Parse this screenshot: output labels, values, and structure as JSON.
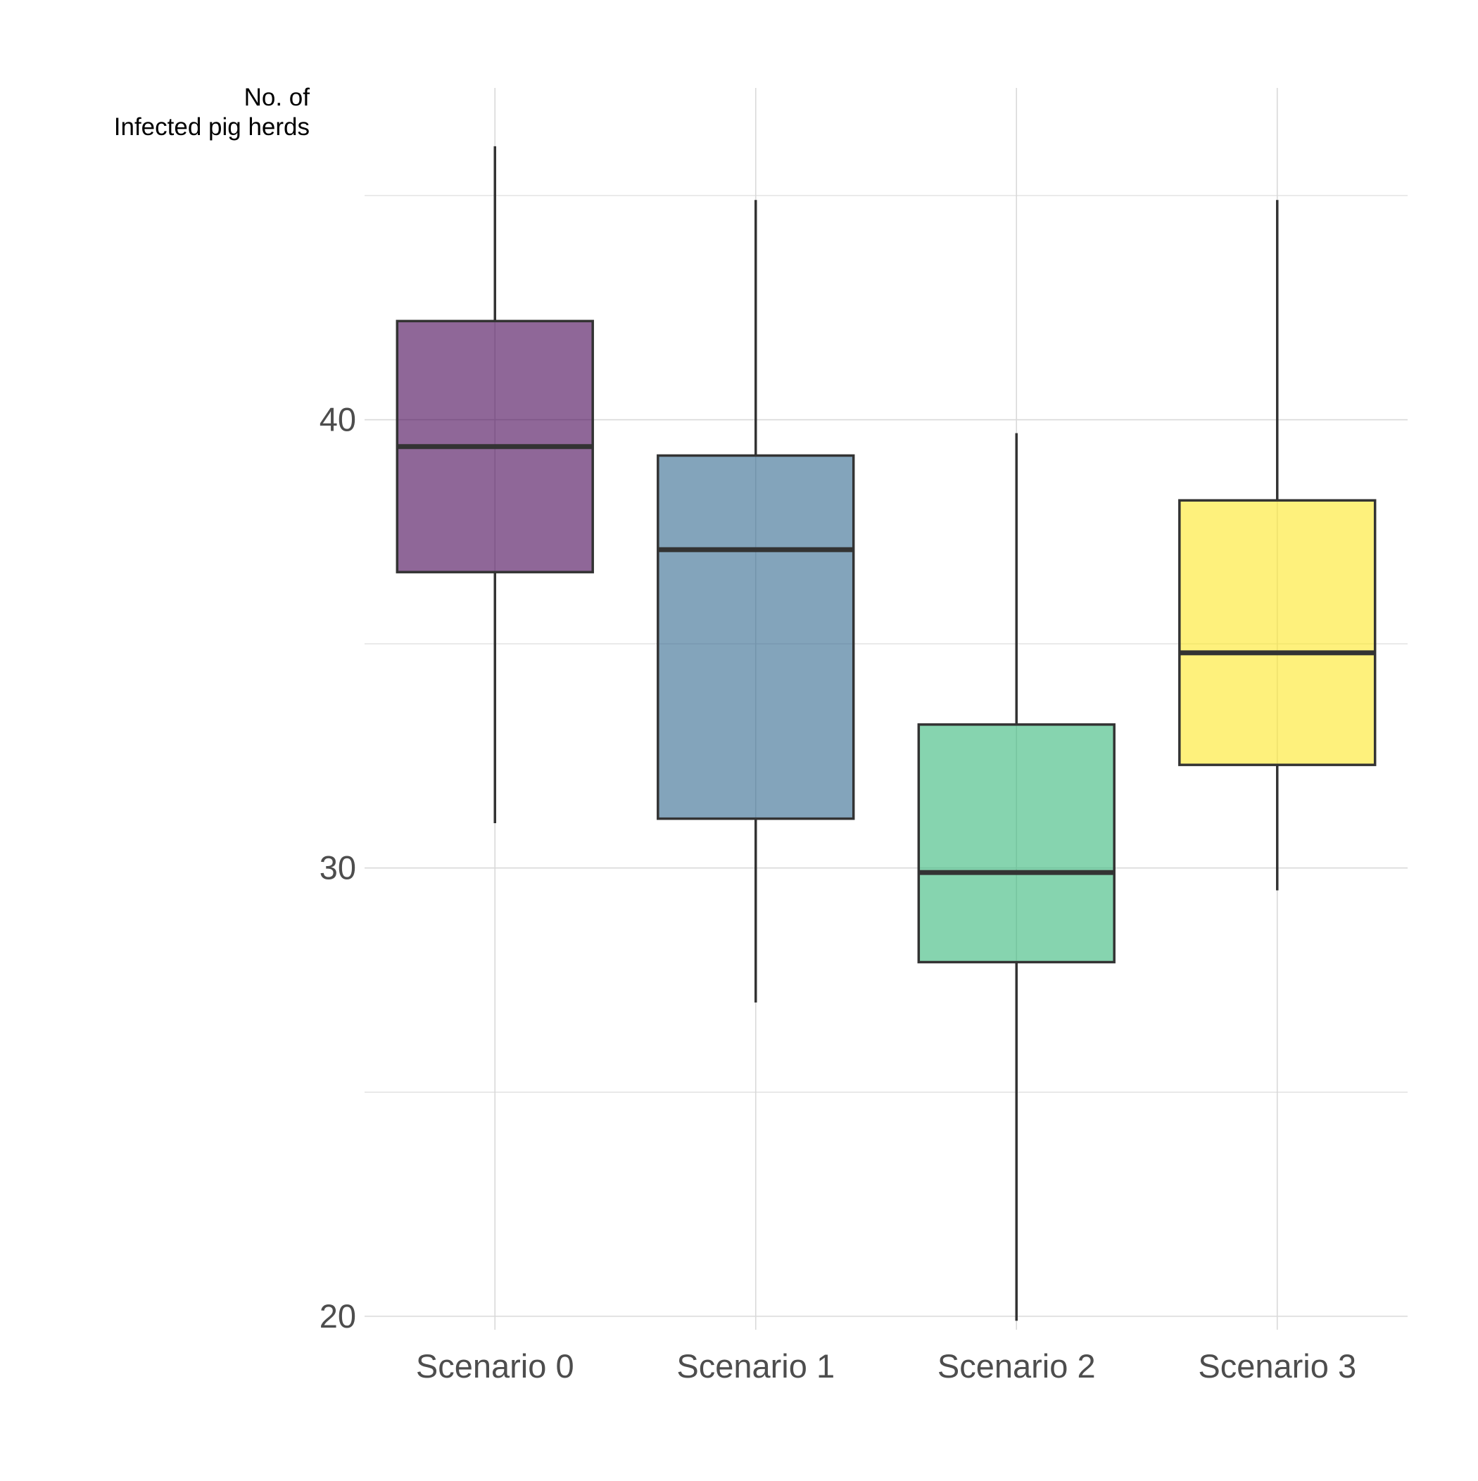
{
  "chart_data": {
    "type": "boxplot",
    "ylabel_lines": [
      "No. of",
      "Infected pig herds"
    ],
    "xlabel": "",
    "categories": [
      "Scenario 0",
      "Scenario 1",
      "Scenario 2",
      "Scenario 3"
    ],
    "boxes": [
      {
        "category": "Scenario 0",
        "min": 31.0,
        "q1": 36.6,
        "median": 39.4,
        "q3": 42.2,
        "max": 46.1,
        "color": "#440154"
      },
      {
        "category": "Scenario 1",
        "min": 27.0,
        "q1": 31.1,
        "median": 37.1,
        "q3": 39.2,
        "max": 44.9,
        "color": "#31688E"
      },
      {
        "category": "Scenario 2",
        "min": 19.9,
        "q1": 27.9,
        "median": 29.9,
        "q3": 33.2,
        "max": 39.7,
        "color": "#35B779"
      },
      {
        "category": "Scenario 3",
        "min": 29.5,
        "q1": 32.3,
        "median": 34.8,
        "q3": 38.2,
        "max": 44.9,
        "color": "#FDE725"
      }
    ],
    "fill_opacity": 0.6,
    "yticks": [
      20,
      30,
      40
    ],
    "ylim": [
      19.7,
      47.4
    ],
    "grid": true,
    "legend": "none"
  }
}
